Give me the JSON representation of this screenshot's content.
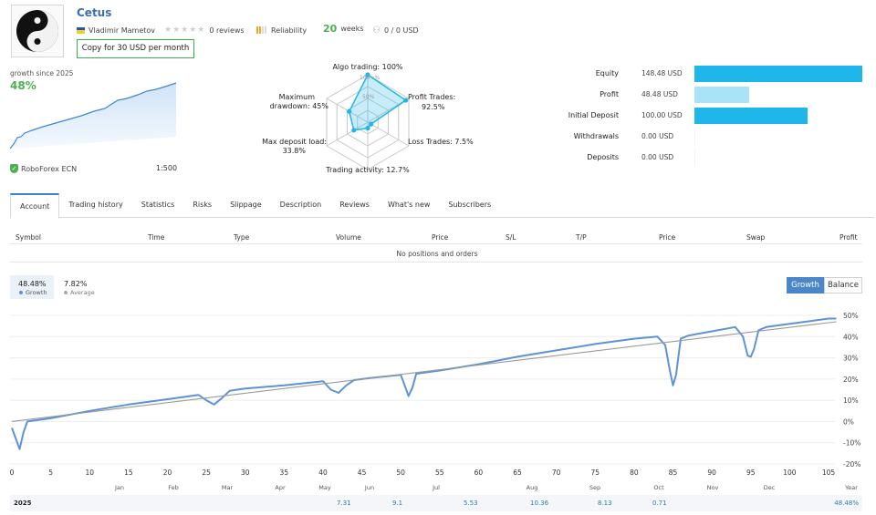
{
  "signal": {
    "name": "Cetus",
    "author": "Vladimir Mametov",
    "reviews": "0 reviews",
    "reliability_label": "Reliability",
    "weeks_num": "20",
    "weeks_label": "weeks",
    "subscribers": "0 / 0 USD",
    "copy_button": "Copy for 30 USD per month",
    "growth_since_label": "growth since 2025",
    "growth_value": "48%",
    "broker": "RoboForex ECN",
    "leverage": "1:500"
  },
  "radar": {
    "labels": {
      "algo": "Algo trading: 100%",
      "profit1": "Profit Trades:",
      "profit2": "92.5%",
      "loss": "Loss Trades: 7.5%",
      "activity": "Trading activity: 12.7%",
      "deposit1": "Max deposit load:",
      "deposit2": "33.8%",
      "drawdown1": "Maximum",
      "drawdown2": "drawdown: 45%",
      "scale_top": "100+%",
      "scale_mid": "50%"
    },
    "values": {
      "algo": 1.0,
      "profit": 0.925,
      "loss": 0.075,
      "activity": 0.127,
      "deposit": 0.338,
      "drawdown": 0.45
    }
  },
  "stats": [
    {
      "label": "Equity",
      "value": "148.48 USD",
      "fill": 1.0,
      "color": "#1fb6ea"
    },
    {
      "label": "Profit",
      "value": "48.48 USD",
      "fill": 0.327,
      "color": "#a8e3f7"
    },
    {
      "label": "Initial Deposit",
      "value": "100.00 USD",
      "fill": 0.673,
      "color": "#1fb6ea"
    },
    {
      "label": "Withdrawals",
      "value": "0.00 USD",
      "fill": 0,
      "color": "#1fb6ea"
    },
    {
      "label": "Deposits",
      "value": "0.00 USD",
      "fill": 0,
      "color": "#1fb6ea"
    }
  ],
  "tabs": [
    "Account",
    "Trading history",
    "Statistics",
    "Risks",
    "Slippage",
    "Description",
    "Reviews",
    "What's new",
    "Subscribers"
  ],
  "positions": {
    "headers": [
      "Symbol",
      "Time",
      "Type",
      "Volume",
      "Price",
      "S/L",
      "T/P",
      "Price",
      "Swap",
      "Profit"
    ],
    "empty_text": "No positions and orders"
  },
  "chart_legend": {
    "growth_value": "48.48%",
    "growth_name": "Growth",
    "average_value": "7.82%",
    "average_name": "Average"
  },
  "chart_buttons": {
    "growth": "Growth",
    "balance": "Balance"
  },
  "chart_data": {
    "type": "line",
    "x_ticks": [
      0,
      5,
      10,
      15,
      20,
      25,
      30,
      35,
      40,
      45,
      50,
      55,
      60,
      65,
      70,
      75,
      80,
      85,
      90,
      95,
      100,
      105
    ],
    "months": [
      "Jan",
      "Feb",
      "Mar",
      "Apr",
      "May",
      "Jun",
      "Jul",
      "Aug",
      "Sep",
      "Oct",
      "Nov",
      "Dec",
      "Year"
    ],
    "y_ticks": [
      "50%",
      "40%",
      "30%",
      "20%",
      "10%",
      "0%",
      "-10%",
      "-20%"
    ],
    "ylim": [
      -20,
      50
    ],
    "xlim": [
      0,
      105
    ],
    "series": [
      {
        "name": "Growth",
        "color": "#5d93d6",
        "x": [
          0,
          0.5,
          1,
          1.5,
          2,
          5,
          10,
          15,
          20,
          24,
          25,
          26,
          27,
          28,
          30,
          35,
          40,
          41,
          42,
          43,
          44,
          46,
          50,
          50.5,
          51,
          51.5,
          52,
          55,
          60,
          65,
          70,
          75,
          80,
          83,
          84,
          84.6,
          85,
          85.4,
          86,
          87,
          90,
          93,
          94,
          94.6,
          95,
          95.4,
          96,
          97,
          100,
          105,
          106
        ],
        "y": [
          -3,
          -8,
          -13,
          -5,
          0,
          1.5,
          5,
          8,
          10.5,
          12.5,
          10,
          8,
          11,
          14.5,
          15.5,
          17,
          19,
          15,
          13.5,
          17,
          19.5,
          20.5,
          22,
          17,
          12,
          16,
          22.5,
          24,
          27,
          30.5,
          33.5,
          36.5,
          39,
          40,
          36,
          24,
          17,
          22,
          39,
          40.5,
          42.5,
          44.5,
          40,
          31,
          30.5,
          34,
          43,
          44.5,
          46,
          48.5,
          48.5
        ]
      },
      {
        "name": "Average",
        "color": "#9a9a9a",
        "x": [
          0,
          106
        ],
        "y": [
          0,
          47
        ]
      }
    ]
  },
  "monthly": {
    "year": "2025",
    "values": [
      "7.31",
      "9.1",
      "5.53",
      "10.36",
      "8.13",
      "0.71"
    ],
    "total": "48.48%"
  }
}
